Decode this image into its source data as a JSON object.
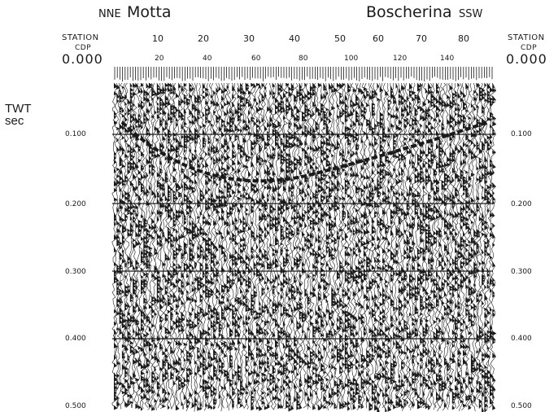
{
  "header": {
    "left_direction": "NNE",
    "left_location": "Motta",
    "right_location": "Boscherina",
    "right_direction": "SSW"
  },
  "axes": {
    "station_label_left": "STATION",
    "cdp_label_left": "CDP",
    "station_label_right": "STATION",
    "cdp_label_right": "CDP",
    "station_ticks": [
      "10",
      "20",
      "30",
      "40",
      "50",
      "60",
      "70",
      "80"
    ],
    "cdp_ticks": [
      "20",
      "40",
      "60",
      "80",
      "100",
      "120",
      "140"
    ],
    "time_axis_title": "TWT",
    "time_axis_unit": "sec",
    "time_top_left": "0.000",
    "time_top_right": "0.000",
    "time_ticks_left": [
      "0.100",
      "0.200",
      "0.300",
      "0.400",
      "0.500"
    ],
    "time_ticks_right": [
      "0.100",
      "0.200",
      "0.300",
      "0.400",
      "0.500"
    ]
  },
  "colors": {
    "ink": "#1a1a1a",
    "paper": "#ffffff"
  }
}
